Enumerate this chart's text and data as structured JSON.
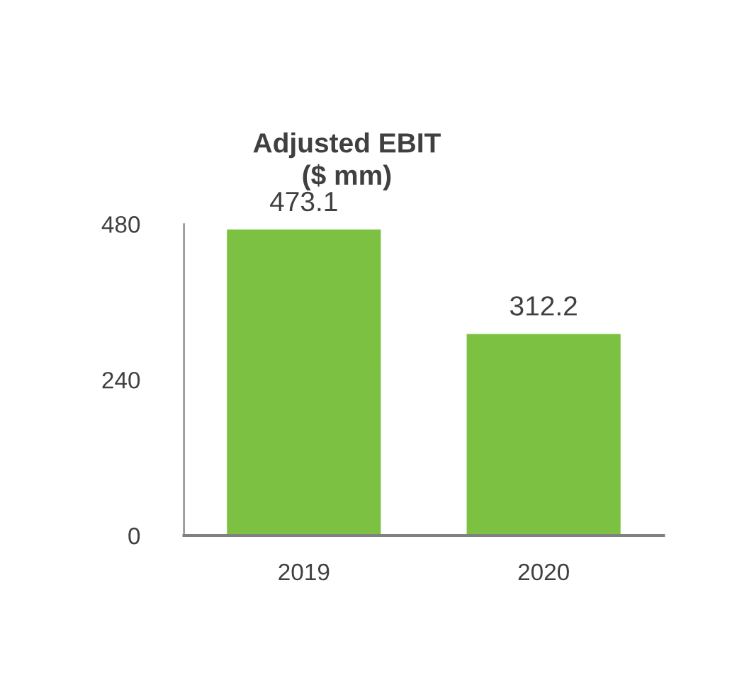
{
  "chart_data": {
    "type": "bar",
    "title": "Adjusted EBIT\n($ mm)",
    "categories": [
      "2019",
      "2020"
    ],
    "series": [
      {
        "color": "#7dc142",
        "values": [
          473.1,
          312.2
        ]
      }
    ],
    "ylim": [
      0,
      480
    ],
    "yticks": [
      0,
      240,
      480
    ],
    "data_labels": true,
    "grid": false,
    "legend": false
  }
}
